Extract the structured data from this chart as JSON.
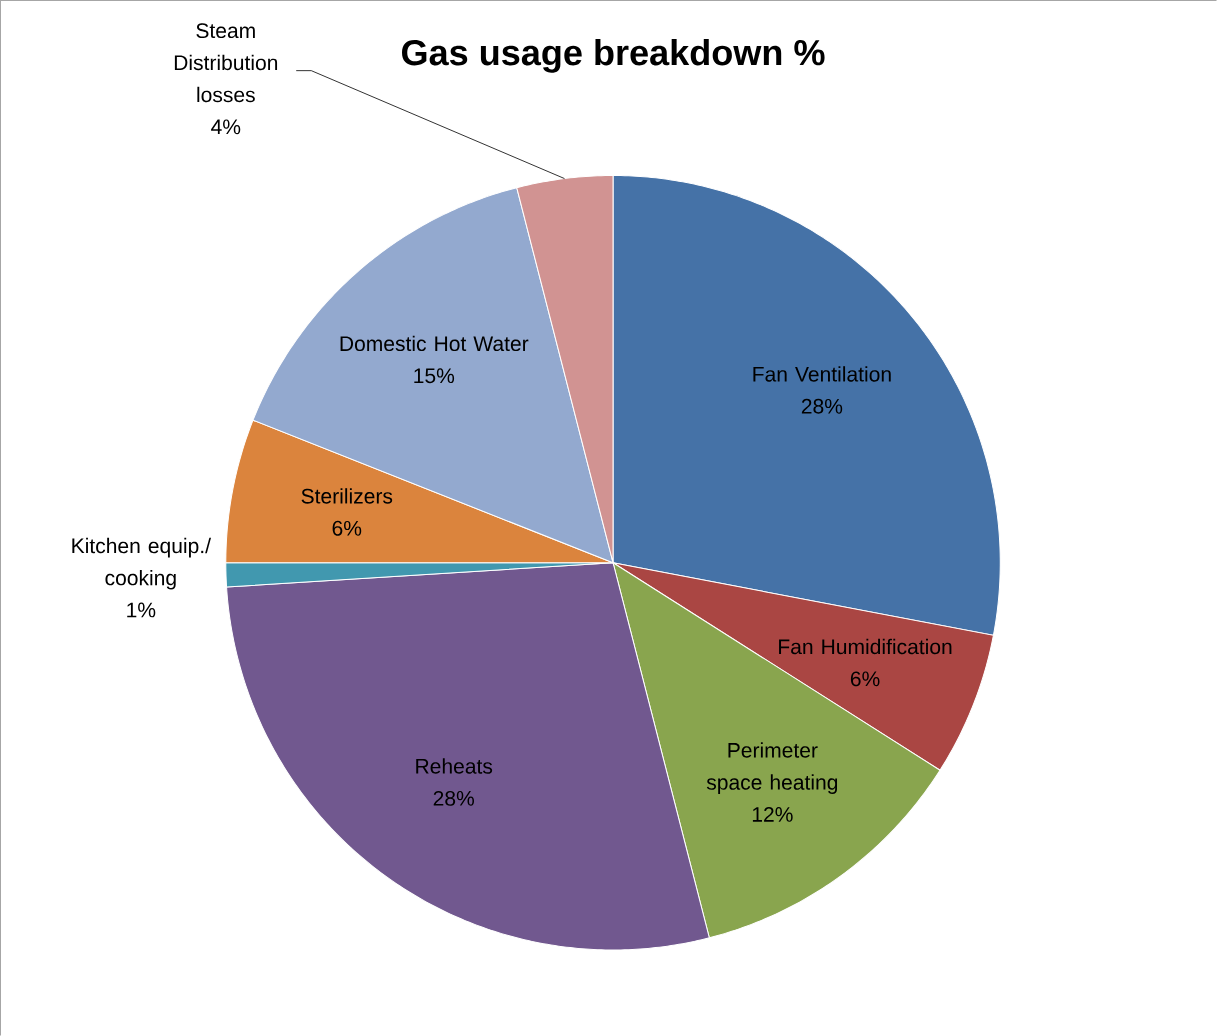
{
  "chart_data": {
    "type": "pie",
    "title": "Gas usage breakdown %",
    "categories": [
      "Fan Ventilation",
      "Fan Humidification",
      "Perimeter space heating",
      "Reheats",
      "Kitchen equip./ cooking",
      "Sterilizers",
      "Domestic Hot Water",
      "Steam Distribution losses"
    ],
    "values": [
      28,
      6,
      12,
      28,
      1,
      6,
      15,
      4
    ],
    "value_labels": [
      "28%",
      "6%",
      "12%",
      "28%",
      "1%",
      "6%",
      "15%",
      "4%"
    ],
    "colors": [
      "#4572a7",
      "#aa4643",
      "#89a54e",
      "#71588f",
      "#4198af",
      "#db843d",
      "#93a9cf",
      "#d19392"
    ]
  }
}
